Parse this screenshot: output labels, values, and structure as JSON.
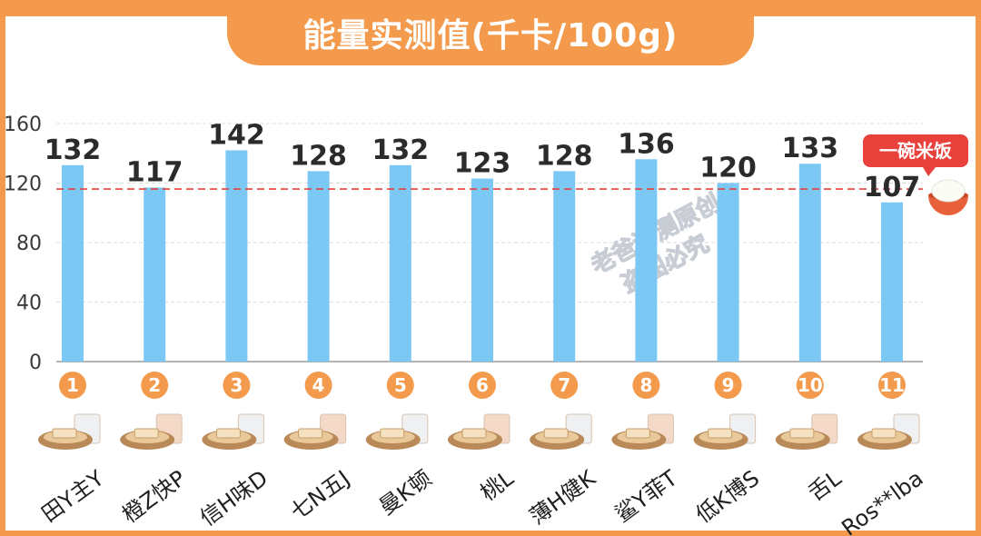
{
  "title": "能量实测值(千卡/100g)",
  "chart_data": {
    "type": "bar",
    "categories": [
      "田Y主Y",
      "橙Z快P",
      "信H味D",
      "七N五J",
      "曼K顿",
      "桃L",
      "薄H健K",
      "鲨Y菲T",
      "低K博S",
      "舌L",
      "Ros**lba"
    ],
    "numbers": [
      "1",
      "2",
      "3",
      "4",
      "5",
      "6",
      "7",
      "8",
      "9",
      "10",
      "11"
    ],
    "values": [
      132,
      117,
      142,
      128,
      132,
      123,
      128,
      136,
      120,
      133,
      107
    ],
    "yticks": [
      0,
      40,
      80,
      120,
      160
    ],
    "ylim": [
      0,
      160
    ],
    "reference_line": {
      "value": 116,
      "label": "一碗米饭",
      "color": "#e8403a"
    },
    "grid": true,
    "bar_color": "#7cc8f4",
    "number_badge_color": "#f39a4c"
  },
  "watermark": {
    "line1": "老爸评测原创",
    "line2": "盗图必究"
  },
  "colors": {
    "accent": "#f39a4c",
    "bar": "#7cc8f4",
    "reference": "#e8403a"
  }
}
